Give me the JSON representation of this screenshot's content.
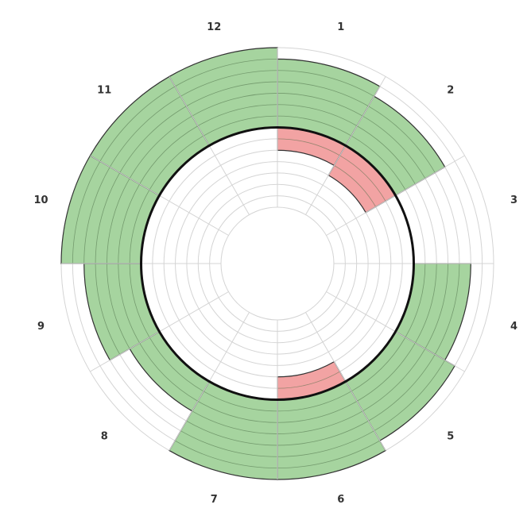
{
  "chart_data": {
    "type": "radial-bar",
    "sectors": [
      "1",
      "2",
      "3",
      "4",
      "5",
      "6",
      "7",
      "8",
      "9",
      "10",
      "11",
      "12"
    ],
    "series": [
      {
        "values": [
          6,
          5,
          0,
          5,
          6,
          7,
          7,
          3,
          5,
          7,
          7,
          7
        ]
      },
      {
        "values": [
          -2,
          -3,
          0,
          0,
          0,
          -2,
          0,
          0,
          0,
          0,
          0,
          0
        ]
      }
    ],
    "rlim": [
      -7,
      7
    ],
    "baseline": 0,
    "rings": 14,
    "grid": true,
    "colors": {
      "positive": "#a6d49f",
      "negative": "#f2a3a3",
      "baseline": "#111111",
      "grid": "#d4d4d4",
      "bar_edge": "#333333"
    }
  }
}
